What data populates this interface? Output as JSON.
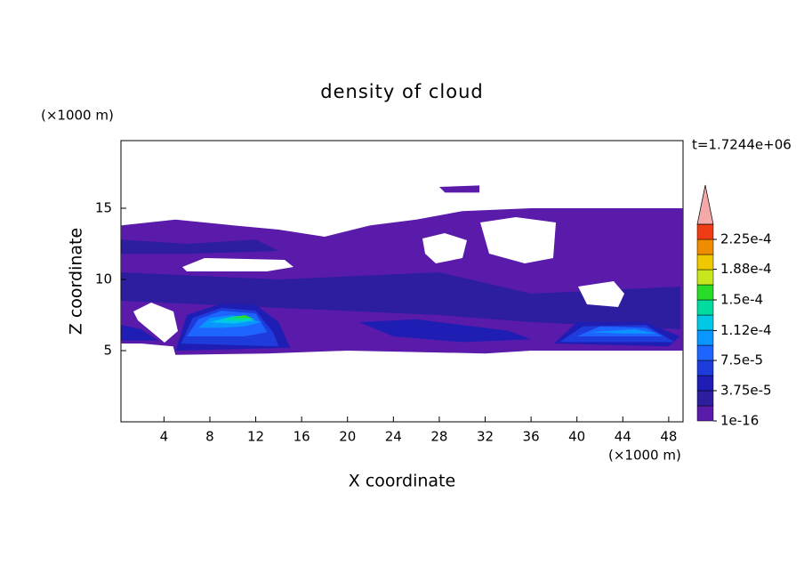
{
  "chart_data": {
    "type": "contour",
    "title": "density of cloud",
    "x_label": "X coordinate",
    "y_label": "Z coordinate",
    "x_unit": "(×1000 m)",
    "y_unit": "(×1000 m)",
    "time_label": "t=1.7244e+06",
    "xlim": [
      0.25,
      49.25
    ],
    "ylim": [
      0,
      19.75
    ],
    "xticks": [
      4,
      8,
      12,
      16,
      20,
      24,
      28,
      32,
      36,
      40,
      44,
      48
    ],
    "yticks": [
      5,
      10,
      15
    ],
    "colorbar": {
      "ticks": [
        {
          "value": 1e-16,
          "label": "1e-16"
        },
        {
          "value": 3.75e-05,
          "label": "3.75e-5"
        },
        {
          "value": 7.5e-05,
          "label": "7.5e-5"
        },
        {
          "value": 0.000112,
          "label": "1.12e-4"
        },
        {
          "value": 0.00015,
          "label": "1.5e-4"
        },
        {
          "value": 0.000188,
          "label": "1.88e-4"
        },
        {
          "value": 0.000225,
          "label": "2.25e-4"
        }
      ],
      "colors": [
        "#5a1aaa",
        "#2d1ea0",
        "#1e1eb4",
        "#1e3cdc",
        "#1e64ff",
        "#0a96ff",
        "#00c8e6",
        "#00dca0",
        "#28dc28",
        "#c8e61e",
        "#f0c800",
        "#f08c00",
        "#f03c14"
      ],
      "extend_color": "#f4a8a8"
    },
    "regions": [
      {
        "level": 1e-16,
        "x": [
          0.3,
          5,
          10,
          14,
          18,
          22,
          26,
          30,
          36,
          42,
          49.2,
          49.2,
          36,
          32,
          20,
          13,
          5,
          4.8,
          2,
          0.3
        ],
        "z": [
          13.8,
          14.2,
          13.8,
          13.5,
          13,
          13.8,
          14.2,
          14.8,
          15,
          15,
          15,
          5,
          5,
          4.8,
          5,
          4.8,
          4.7,
          5.3,
          5.5,
          5.5
        ]
      },
      {
        "level": 1e-16,
        "x": [
          28,
          31.5,
          31.5,
          28.5
        ],
        "z": [
          16.5,
          16.6,
          16.1,
          16.1
        ]
      },
      {
        "level": 1.875e-05,
        "x": [
          0.3,
          6,
          12,
          14,
          6,
          0.3
        ],
        "z": [
          12.8,
          12.5,
          12.8,
          12,
          11.8,
          11.8
        ]
      },
      {
        "level": 1.875e-05,
        "x": [
          0.3,
          14,
          28,
          36,
          49,
          49,
          36,
          28,
          14,
          0.3
        ],
        "z": [
          10.5,
          10,
          10.5,
          9,
          9.5,
          6.5,
          7,
          7.5,
          8,
          8.5
        ]
      },
      {
        "level": 3.75e-05,
        "x": [
          0.3,
          2,
          3.5,
          0.3
        ],
        "z": [
          6.8,
          6.5,
          5.7,
          5.7
        ]
      },
      {
        "level": 3.75e-05,
        "x": [
          5,
          6,
          9,
          12,
          14,
          15
        ],
        "z": [
          5,
          7.5,
          8.3,
          8.2,
          7,
          5.2
        ]
      },
      {
        "level": 3.75e-05,
        "x": [
          21,
          26,
          30,
          34,
          36,
          30,
          24
        ],
        "z": [
          7,
          7.2,
          6.8,
          6.4,
          5.8,
          5.6,
          6
        ]
      },
      {
        "level": 3.75e-05,
        "x": [
          38,
          40,
          46,
          49,
          48
        ],
        "z": [
          5.5,
          7,
          7,
          6,
          5.3
        ]
      },
      {
        "level": 5.625e-05,
        "x": [
          5.5,
          6.5,
          9,
          12,
          13.5,
          14
        ],
        "z": [
          5.5,
          7.3,
          8,
          7.8,
          6.3,
          5.3
        ]
      },
      {
        "level": 5.625e-05,
        "x": [
          38.5,
          40.5,
          46,
          48.5
        ],
        "z": [
          5.6,
          6.7,
          6.8,
          5.6
        ]
      },
      {
        "level": 7.5e-05,
        "x": [
          6,
          7,
          9,
          12,
          13,
          11,
          8
        ],
        "z": [
          6,
          7.2,
          7.8,
          7.6,
          6.3,
          6,
          6
        ]
      },
      {
        "level": 7.5e-05,
        "x": [
          40,
          42,
          46,
          47.5
        ],
        "z": [
          6,
          6.7,
          6.6,
          6
        ]
      },
      {
        "level": 9.375e-05,
        "x": [
          7,
          8,
          10,
          12.5,
          11,
          9
        ],
        "z": [
          6.6,
          7.3,
          7.5,
          7,
          6.7,
          6.6
        ]
      },
      {
        "level": 9.375e-05,
        "x": [
          41,
          45,
          47,
          44
        ],
        "z": [
          6.3,
          6.5,
          6.2,
          6.2
        ]
      },
      {
        "level": 0.0001125,
        "x": [
          8,
          10,
          12,
          10
        ],
        "z": [
          7,
          7.4,
          7.1,
          6.9
        ]
      },
      {
        "level": 0.00013125,
        "x": [
          9,
          10.5,
          12,
          10.5
        ],
        "z": [
          7.2,
          7.45,
          7.2,
          7.1
        ]
      },
      {
        "level": 0.00015,
        "x": [
          10,
          11,
          11.7
        ],
        "z": [
          7.3,
          7.5,
          7.3
        ]
      }
    ]
  }
}
